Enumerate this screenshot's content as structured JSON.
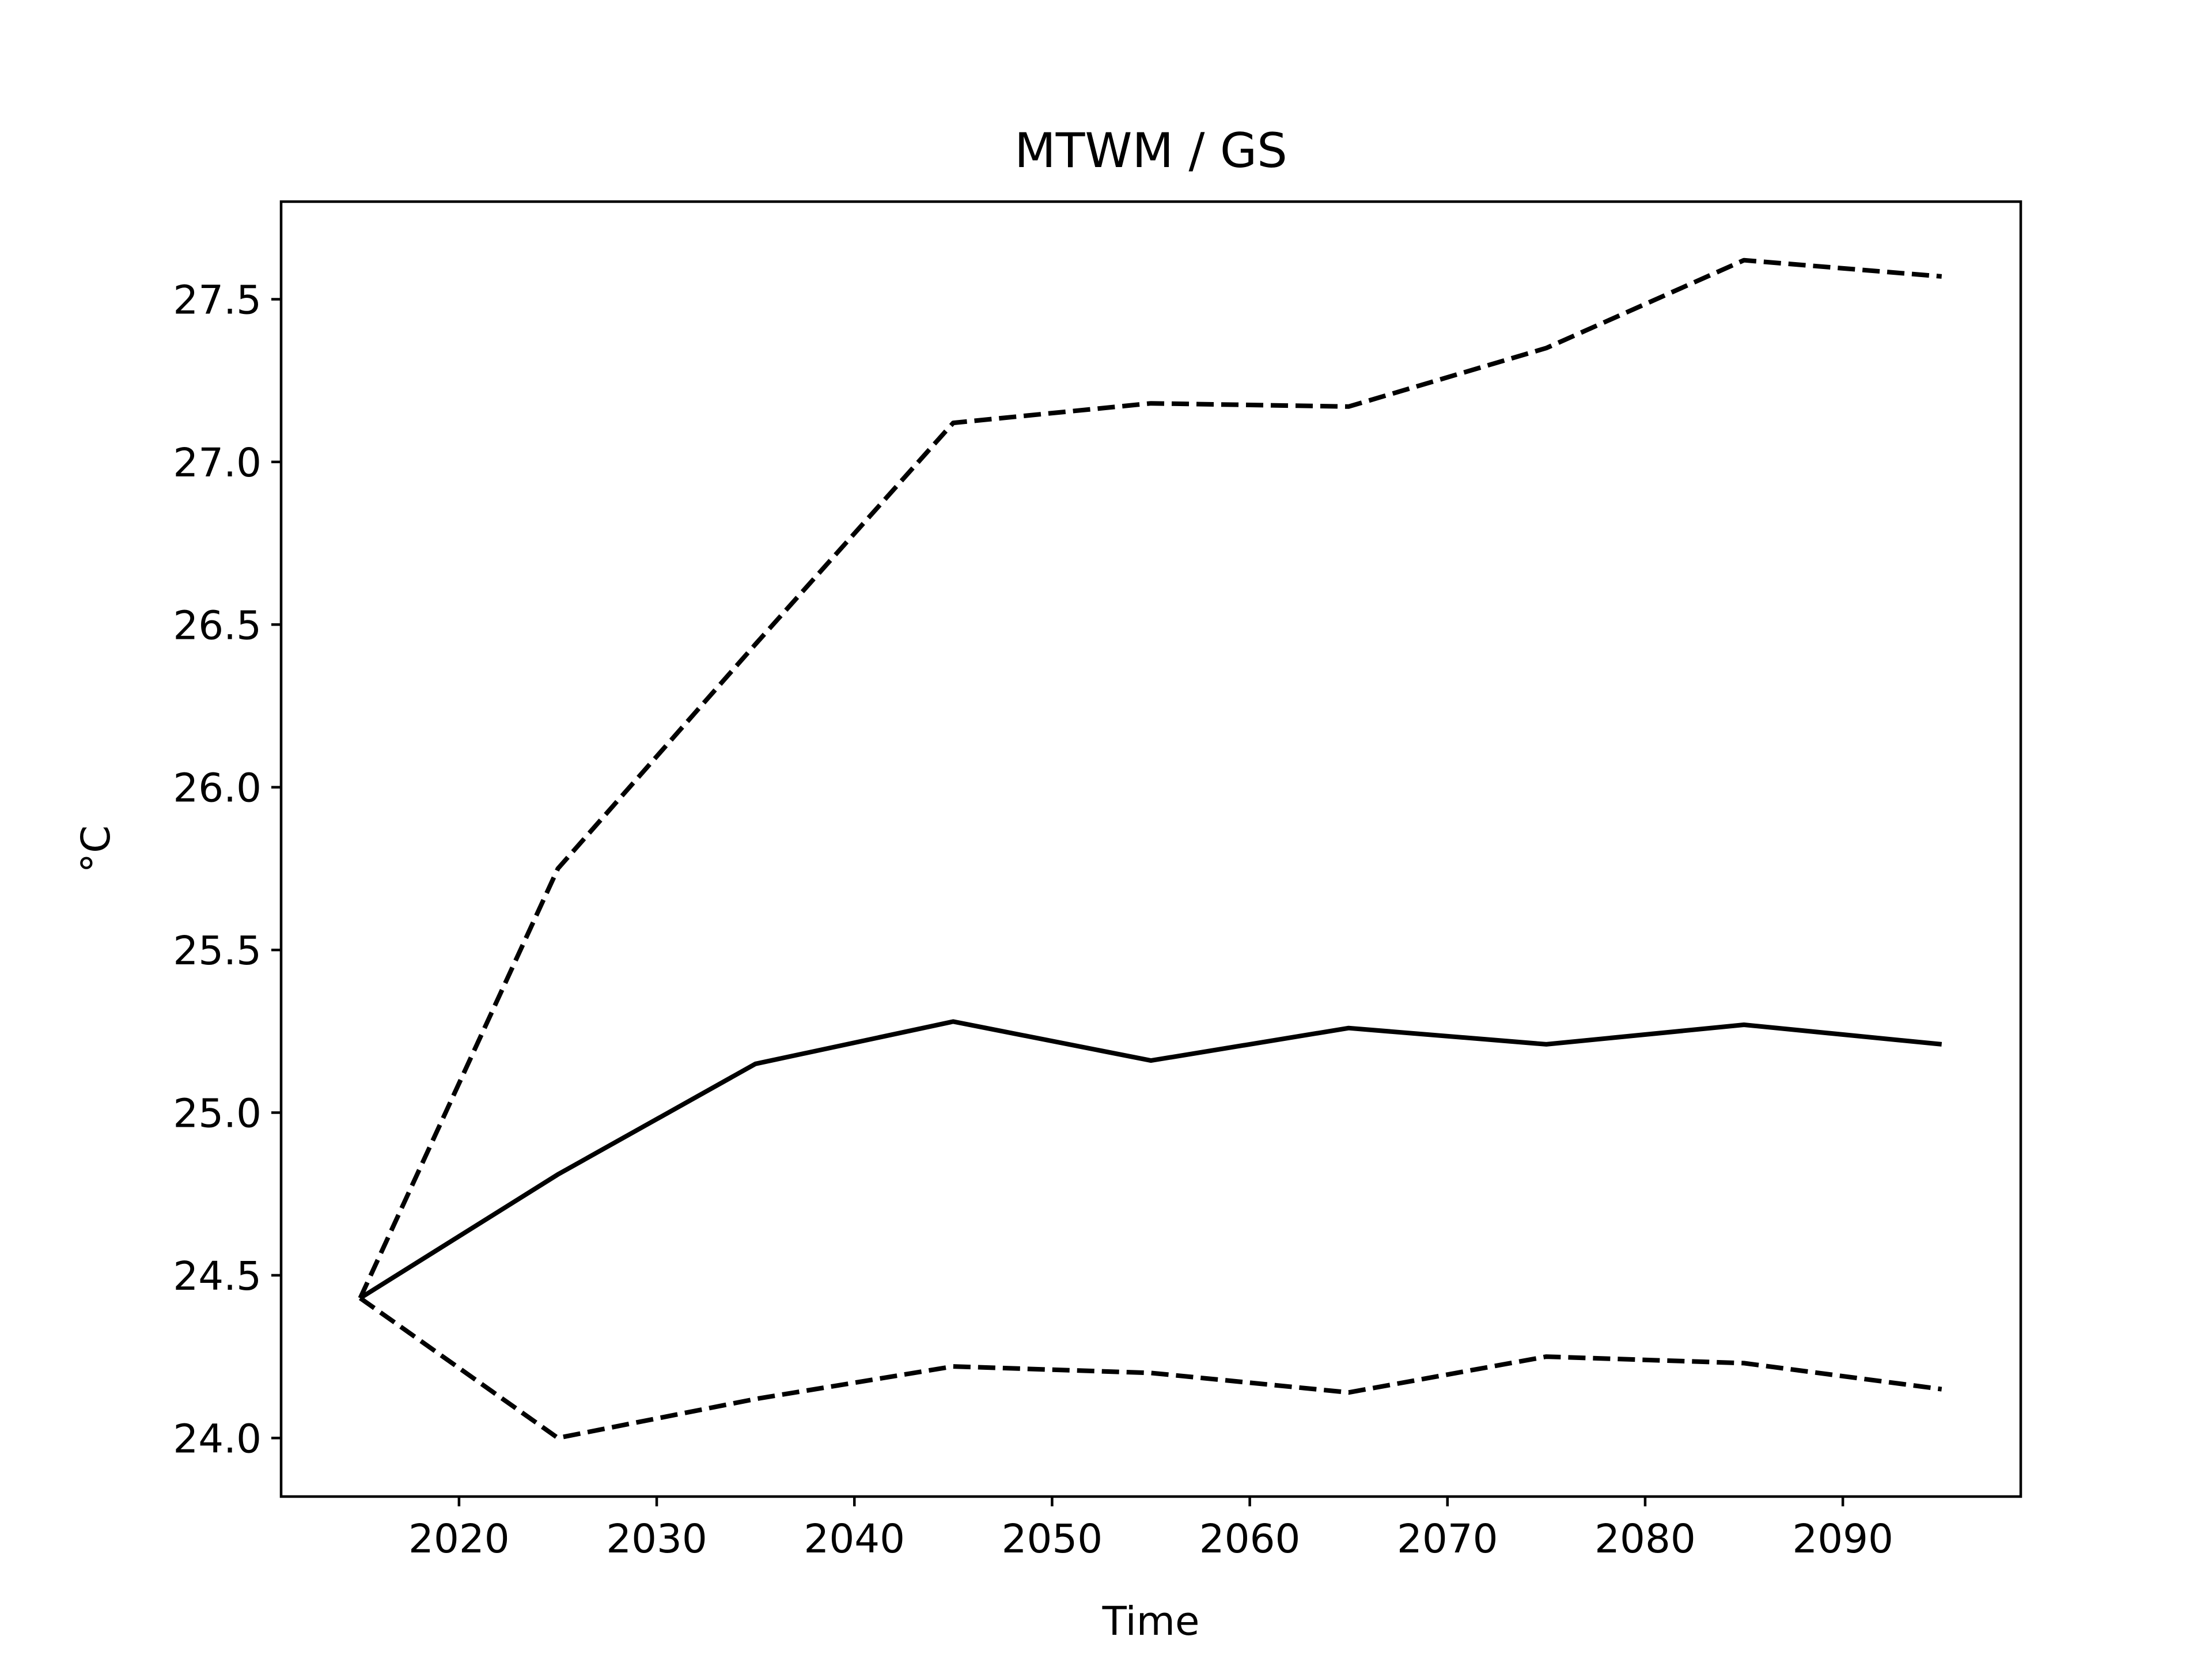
{
  "chart_data": {
    "type": "line",
    "title": "MTWM / GS",
    "xlabel": "Time",
    "ylabel": "°C",
    "xlim": [
      2011,
      2099
    ],
    "ylim": [
      23.82,
      27.8
    ],
    "xticks": [
      2020,
      2030,
      2040,
      2050,
      2060,
      2070,
      2080,
      2090
    ],
    "xtick_labels": [
      "2020",
      "2030",
      "2040",
      "2050",
      "2060",
      "2070",
      "2080",
      "2090"
    ],
    "yticks": [
      24.0,
      24.5,
      25.0,
      25.5,
      26.0,
      26.5,
      27.0,
      27.5
    ],
    "ytick_labels": [
      "24.0",
      "24.5",
      "25.0",
      "25.5",
      "26.0",
      "26.5",
      "27.0",
      "27.5"
    ],
    "grid": false,
    "x": [
      2015,
      2025,
      2035,
      2045,
      2055,
      2065,
      2075,
      2085,
      2095
    ],
    "series": [
      {
        "style": "dashed",
        "color": "#000000",
        "values": [
          24.43,
          25.75,
          26.44,
          27.12,
          27.18,
          27.17,
          27.35,
          27.62,
          27.57
        ]
      },
      {
        "style": "solid",
        "color": "#000000",
        "values": [
          24.43,
          24.81,
          25.15,
          25.28,
          25.16,
          25.26,
          25.21,
          25.27,
          25.21
        ]
      },
      {
        "style": "dashed",
        "color": "#000000",
        "values": [
          24.43,
          24.0,
          24.12,
          24.22,
          24.2,
          24.14,
          24.25,
          24.23,
          24.15
        ]
      }
    ]
  }
}
